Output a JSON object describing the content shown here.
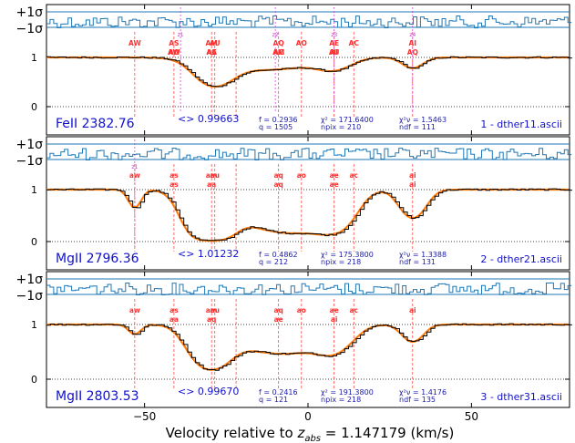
{
  "figure": {
    "xlabel_prefix": "Velocity relative to ",
    "xlabel_z": "z",
    "xlabel_sub": "abs",
    "xlabel_suffix": " = 1.147179 (km/s)",
    "colors": {
      "data": "#000000",
      "model": "#ff7f0e",
      "residual": "#1f77b4",
      "line_marker": "#ff3030",
      "comp_marker": "#cc33cc",
      "label_text": "#1010cc",
      "stat_text": "#1a1aaa"
    }
  },
  "chart_data": [
    {
      "type": "line",
      "ion": "FeII 2382.76",
      "tau_ratio": "<> 0.99663",
      "stats": {
        "f_label": "f = 0.2936",
        "q_label": "q = 1505",
        "chi2_label": "χ² = 171.6400",
        "npix_label": "npix = 210",
        "chi2nu_label": "χ²ν = 1.5463",
        "ndf_label": "ndf = 111"
      },
      "spectrum_file": "1 - dther11.ascii",
      "ytick_labels": [
        "0",
        "1"
      ],
      "resid_labels": [
        "+1σ",
        "−1σ"
      ],
      "xlim": [
        -80,
        80
      ],
      "ylim": [
        -0.05,
        1.05
      ],
      "markers_lower": [
        "AW",
        "AS",
        "AM",
        "AU",
        "AQ",
        "AO",
        "AE",
        "AC",
        "AI"
      ],
      "markers_upper": [
        "AW",
        "AA",
        "AM",
        "AU",
        "AQ",
        "AO",
        "AE",
        "AC",
        "AI"
      ],
      "marker_velocities": [
        -53,
        -41,
        -29.5,
        -28.5,
        -22,
        -9,
        -2,
        8,
        14,
        32
      ],
      "comp_labels": [
        "z1",
        "z2",
        "z3",
        "z4"
      ],
      "comp_velocities": [
        -39,
        -10,
        8,
        32
      ],
      "profile": {
        "continuum": 1.0,
        "absorptions": [
          {
            "v": -29,
            "depth": 0.52,
            "width": 5
          },
          {
            "v": -20,
            "depth": 0.22,
            "width": 10
          },
          {
            "v": -5,
            "depth": 0.15,
            "width": 8
          },
          {
            "v": 8,
            "depth": 0.24,
            "width": 5
          },
          {
            "v": 32,
            "depth": 0.22,
            "width": 3
          }
        ]
      }
    },
    {
      "type": "line",
      "ion": "MgII 2796.36",
      "tau_ratio": "<> 1.01232",
      "stats": {
        "f_label": "f = 0.4862",
        "q_label": "q = 212",
        "chi2_label": "χ² = 175.3800",
        "npix_label": "npix = 218",
        "chi2nu_label": "χ²ν = 1.3388",
        "ndf_label": "ndf = 131"
      },
      "spectrum_file": "2 - dther21.ascii",
      "ytick_labels": [
        "0",
        "1"
      ],
      "resid_labels": [
        "+1σ",
        "−1σ"
      ],
      "xlim": [
        -80,
        80
      ],
      "ylim": [
        -0.05,
        1.05
      ],
      "markers_lower": [
        "aw",
        "as",
        "am",
        "au",
        "aq",
        "ao",
        "ae",
        "ac",
        "ai"
      ],
      "markers_upper": [
        "as",
        "aa",
        "aq",
        "ae",
        "ai"
      ],
      "marker_velocities": [
        -53,
        -41,
        -29.5,
        -28.5,
        -22,
        -9,
        -2,
        8,
        14,
        32
      ],
      "comp_labels": [
        "z1"
      ],
      "comp_velocities": [
        -53
      ],
      "profile": {
        "continuum": 1.0,
        "absorptions": [
          {
            "v": -53,
            "depth": 0.35,
            "width": 1.8
          },
          {
            "v": -30,
            "depth": 0.98,
            "width": 5
          },
          {
            "v": -15,
            "depth": 0.6,
            "width": 10
          },
          {
            "v": -3,
            "depth": 0.72,
            "width": 8
          },
          {
            "v": 8,
            "depth": 0.75,
            "width": 5
          },
          {
            "v": 32,
            "depth": 0.55,
            "width": 3.5
          }
        ]
      }
    },
    {
      "type": "line",
      "ion": "MgII 2803.53",
      "tau_ratio": "<> 0.99670",
      "stats": {
        "f_label": "f = 0.2416",
        "q_label": "q = 121",
        "chi2_label": "χ² = 191.3800",
        "npix_label": "npix = 218",
        "chi2nu_label": "χ²ν = 1.4176",
        "ndf_label": "ndf = 135"
      },
      "spectrum_file": "3 - dther31.ascii",
      "ytick_labels": [
        "0",
        "1"
      ],
      "resid_labels": [
        "+1σ",
        "−1σ"
      ],
      "xlim": [
        -80,
        80
      ],
      "ylim": [
        -0.05,
        1.05
      ],
      "xtick_values": [
        -50,
        0,
        50
      ],
      "xtick_labels": [
        "−50",
        "0",
        "50"
      ],
      "markers_lower": [
        "aw",
        "as",
        "am",
        "au",
        "aq",
        "ao",
        "ae",
        "ac",
        "ai"
      ],
      "markers_upper": [
        "aa",
        "aq",
        "ae",
        "ai"
      ],
      "marker_velocities": [
        -53,
        -41,
        -29.5,
        -28.5,
        -22,
        -9,
        -2,
        8,
        14,
        32
      ],
      "comp_labels": [],
      "comp_velocities": [],
      "profile": {
        "continuum": 1.0,
        "absorptions": [
          {
            "v": -53,
            "depth": 0.18,
            "width": 1.8
          },
          {
            "v": -30,
            "depth": 0.8,
            "width": 5
          },
          {
            "v": -16,
            "depth": 0.4,
            "width": 9
          },
          {
            "v": -3,
            "depth": 0.4,
            "width": 8
          },
          {
            "v": 8,
            "depth": 0.45,
            "width": 5
          },
          {
            "v": 32,
            "depth": 0.32,
            "width": 3
          }
        ]
      }
    }
  ]
}
